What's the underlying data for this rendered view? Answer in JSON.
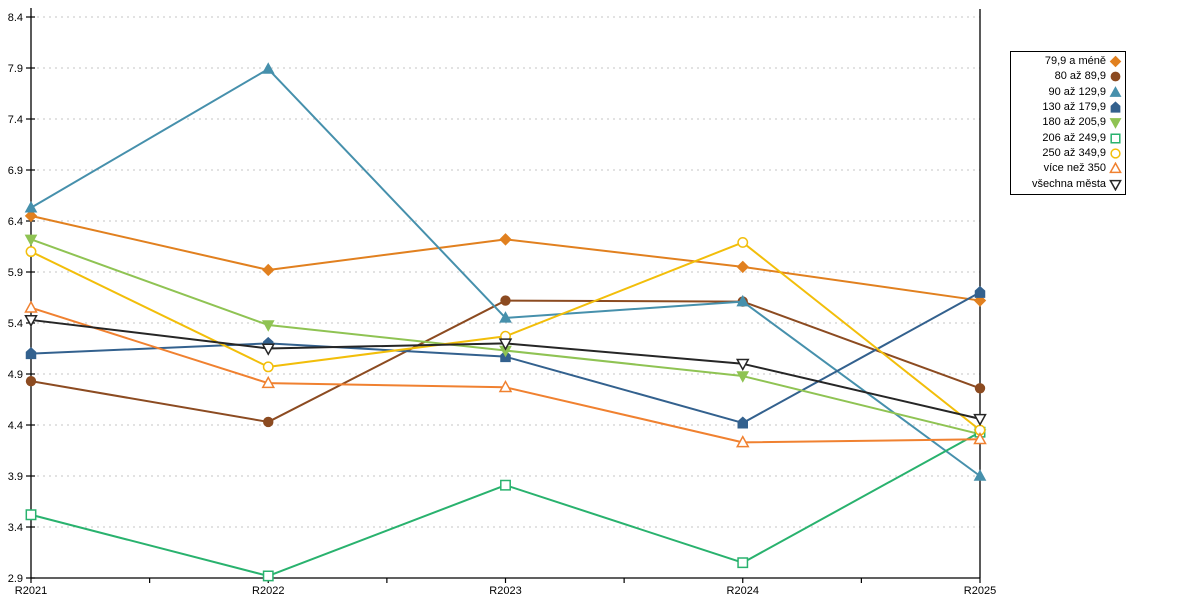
{
  "chart_data": {
    "type": "line",
    "title": "",
    "xlabel": "",
    "ylabel": "",
    "categories": [
      "R2021",
      "R2022",
      "R2023",
      "R2024",
      "R2025"
    ],
    "series": [
      {
        "name": "79,9 a méně",
        "marker": "diamond",
        "marker_style": "filled",
        "color": "#E1801F",
        "values": [
          6.45,
          5.92,
          6.22,
          5.95,
          5.62
        ]
      },
      {
        "name": "80 až 89,9",
        "marker": "circle",
        "marker_style": "filled",
        "color": "#8C4B21",
        "values": [
          4.83,
          4.43,
          5.62,
          5.61,
          4.76
        ]
      },
      {
        "name": "90 až 129,9",
        "marker": "triangle-up",
        "marker_style": "filled",
        "color": "#4690AC",
        "values": [
          6.53,
          7.89,
          5.45,
          5.61,
          3.9
        ]
      },
      {
        "name": "130 až 179,9",
        "marker": "pentagon",
        "marker_style": "filled",
        "color": "#33618E",
        "values": [
          5.1,
          5.2,
          5.07,
          4.42,
          5.7
        ]
      },
      {
        "name": "180 až 205,9",
        "marker": "triangle-down",
        "marker_style": "filled",
        "color": "#8FC353",
        "values": [
          6.22,
          5.38,
          5.13,
          4.88,
          4.31
        ]
      },
      {
        "name": "206 až 249,9",
        "marker": "square",
        "marker_style": "open",
        "color": "#29B26E",
        "values": [
          3.52,
          2.92,
          3.81,
          3.05,
          4.33
        ]
      },
      {
        "name": "250 až 349,9",
        "marker": "circle",
        "marker_style": "open",
        "color": "#F2BE0A",
        "values": [
          6.1,
          4.97,
          5.27,
          6.19,
          4.35
        ]
      },
      {
        "name": "více než 350",
        "marker": "triangle-up",
        "marker_style": "open",
        "color": "#F08130",
        "values": [
          5.55,
          4.81,
          4.77,
          4.23,
          4.26
        ]
      },
      {
        "name": "všechna města",
        "marker": "triangle-down",
        "marker_style": "open",
        "color": "#262626",
        "values": [
          5.43,
          5.15,
          5.2,
          5.0,
          4.46
        ]
      }
    ],
    "ylim": [
      2.9,
      8.4
    ],
    "ytick_step": 0.5,
    "ytick_labels": [
      "2.9",
      "3.4",
      "3.9",
      "4.4",
      "4.9",
      "5.4",
      "5.9",
      "6.4",
      "6.9",
      "7.4",
      "7.9",
      "8.4"
    ],
    "grid": "horizontal-dashed",
    "gridline_color": "#C6C6C6",
    "axis_color": "#000000",
    "legend_position": "right"
  }
}
